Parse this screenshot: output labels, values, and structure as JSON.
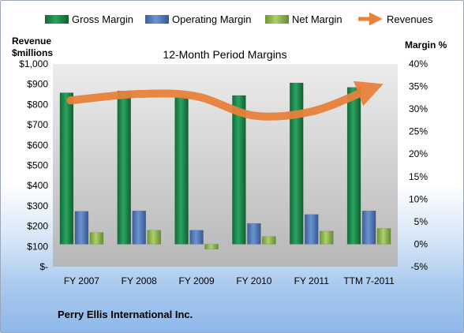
{
  "company": "Perry Ellis International Inc.",
  "chart_data": {
    "type": "bar",
    "title": "12-Month Period Margins",
    "categories": [
      "FY 2007",
      "FY 2008",
      "FY 2009",
      "FY 2010",
      "FY 2011",
      "TTM 7-2011"
    ],
    "y_left": {
      "label_line1": "Revenue",
      "label_line2": "$millions",
      "ylim": [
        0,
        1000
      ],
      "ticks": [
        "$-",
        "$100",
        "$200",
        "$300",
        "$400",
        "$500",
        "$600",
        "$700",
        "$800",
        "$900",
        "$1,000"
      ]
    },
    "y_right": {
      "label": "Margin %",
      "ylim": [
        -5,
        40
      ],
      "ticks": [
        "-5%",
        "0%",
        "5%",
        "10%",
        "15%",
        "20%",
        "25%",
        "30%",
        "35%",
        "40%"
      ]
    },
    "series": [
      {
        "name": "Gross Margin",
        "type": "bar",
        "axis": "right",
        "color": "#1f8a4c",
        "values": [
          33.6,
          34.0,
          32.7,
          33.0,
          35.8,
          34.8
        ]
      },
      {
        "name": "Operating Margin",
        "type": "bar",
        "axis": "right",
        "color": "#4f78b8",
        "values": [
          7.3,
          7.4,
          3.1,
          4.6,
          6.6,
          7.4
        ]
      },
      {
        "name": "Net Margin",
        "type": "bar",
        "axis": "right",
        "color": "#8fb54e",
        "values": [
          2.6,
          3.1,
          -1.1,
          1.7,
          2.9,
          3.5
        ]
      },
      {
        "name": "Revenues",
        "type": "line",
        "axis": "left",
        "color": "#e8823a",
        "values": [
          820,
          852,
          840,
          745,
          765,
          868
        ]
      }
    ],
    "legend_position": "top",
    "grid": false
  }
}
